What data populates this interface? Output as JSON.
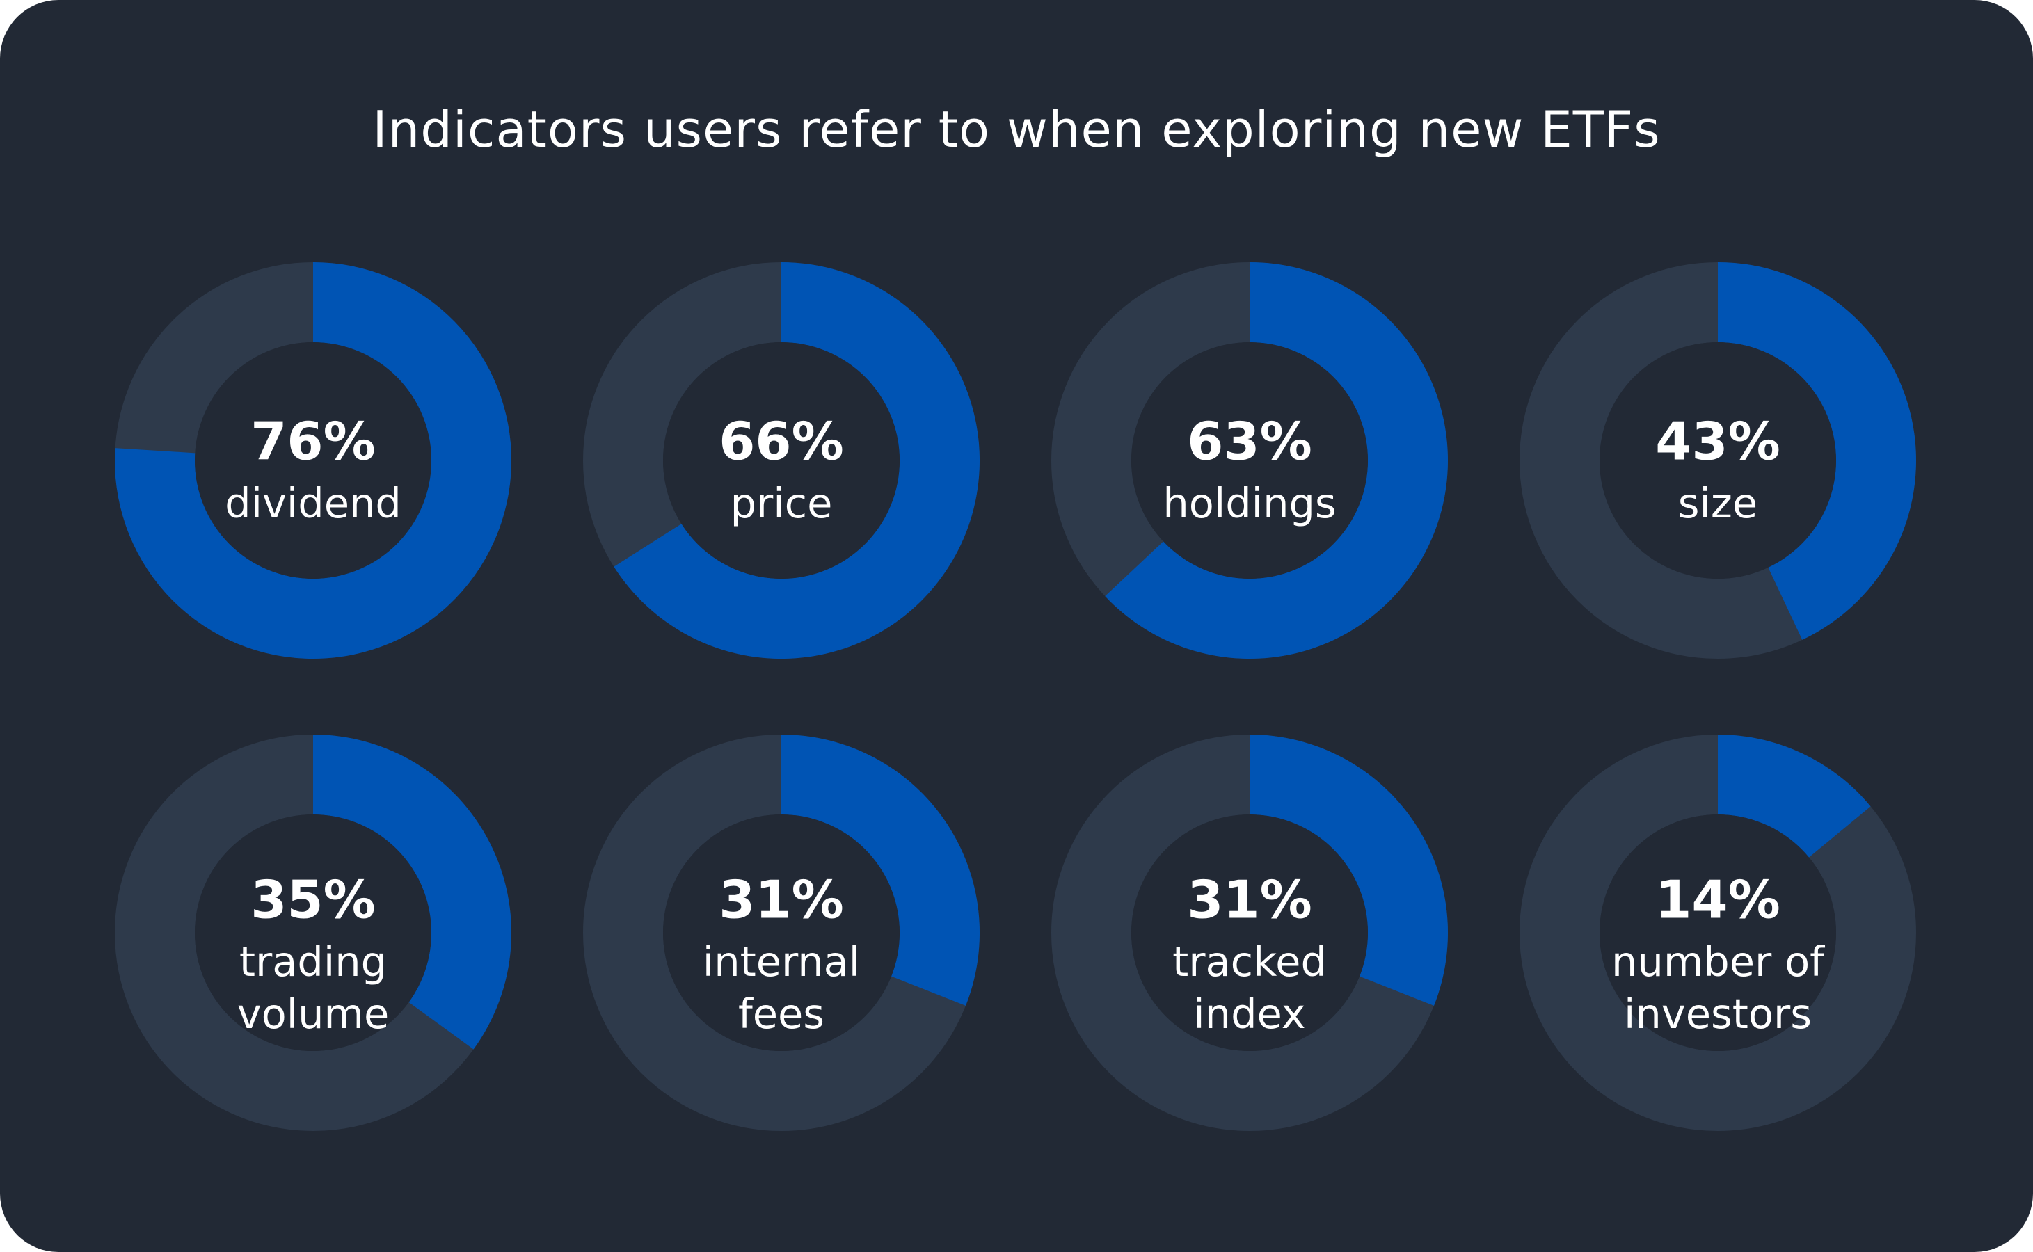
{
  "chart_data": {
    "type": "pie",
    "title": "Indicators users refer to when exploring new ETFs",
    "colors": {
      "background": "#222935",
      "filled": "#0054B4",
      "remaining": "#2E3A4B",
      "text": "#FFFFFF"
    },
    "items": [
      {
        "value": 76,
        "value_label": "76%",
        "label_lines": [
          "dividend"
        ]
      },
      {
        "value": 66,
        "value_label": "66%",
        "label_lines": [
          "price"
        ]
      },
      {
        "value": 63,
        "value_label": "63%",
        "label_lines": [
          "holdings"
        ]
      },
      {
        "value": 43,
        "value_label": "43%",
        "label_lines": [
          "size"
        ]
      },
      {
        "value": 35,
        "value_label": "35%",
        "label_lines": [
          "trading",
          "volume"
        ]
      },
      {
        "value": 31,
        "value_label": "31%",
        "label_lines": [
          "internal",
          "fees"
        ]
      },
      {
        "value": 31,
        "value_label": "31%",
        "label_lines": [
          "tracked",
          "index"
        ]
      },
      {
        "value": 14,
        "value_label": "14%",
        "label_lines": [
          "number of",
          "investors"
        ]
      }
    ]
  }
}
